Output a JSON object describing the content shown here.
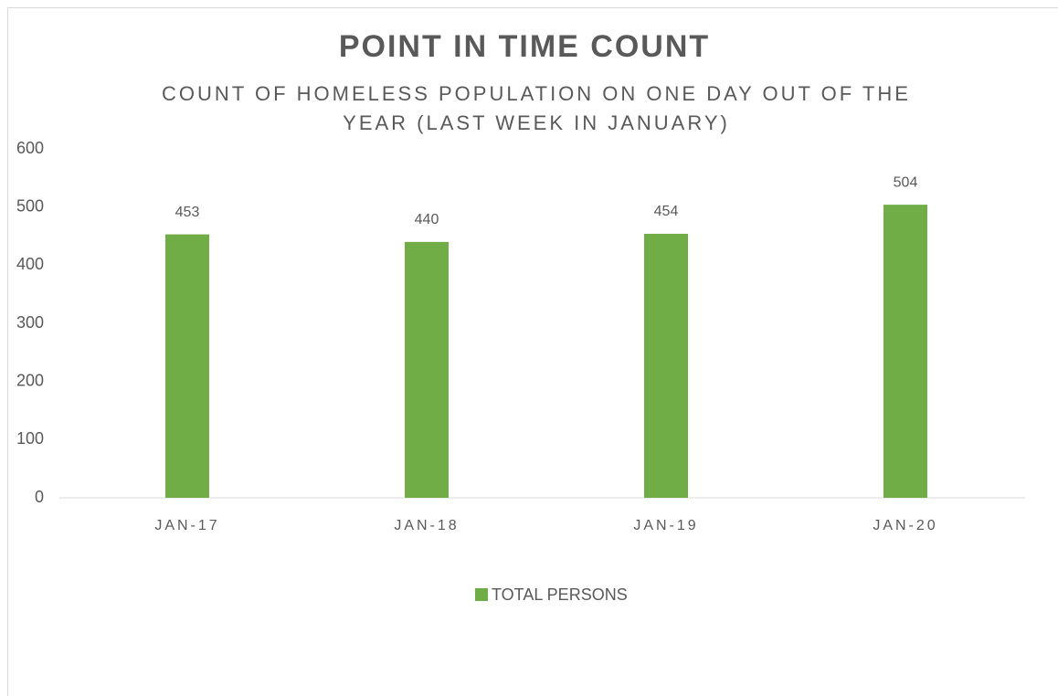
{
  "chart_data": {
    "type": "bar",
    "title": "POINT IN TIME COUNT",
    "subtitle": [
      "COUNT OF HOMELESS POPULATION ON ONE DAY OUT OF THE",
      "YEAR (LAST WEEK IN JANUARY)"
    ],
    "categories": [
      "JAN-17",
      "JAN-18",
      "JAN-19",
      "JAN-20"
    ],
    "series": [
      {
        "name": "TOTAL PERSONS",
        "color": "#70ad47",
        "values": [
          453,
          440,
          454,
          504
        ]
      }
    ],
    "ylim": [
      0,
      600
    ],
    "yticks": [
      0,
      100,
      200,
      300,
      400,
      500,
      600
    ],
    "grid": false,
    "legend": "bottom"
  }
}
